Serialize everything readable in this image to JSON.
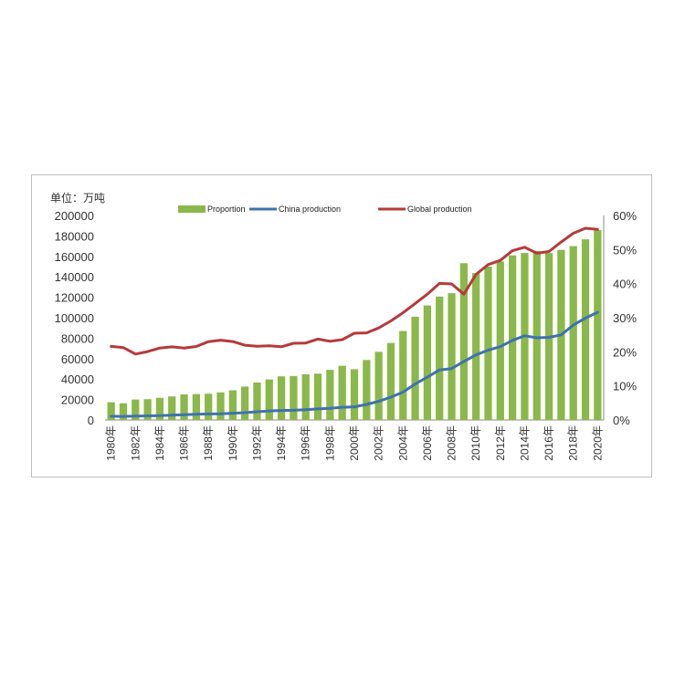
{
  "chart_data": {
    "type": "bar+line",
    "unit_label": "单位：万吨",
    "legend": [
      {
        "name": "Proportion",
        "color": "#8bb84a",
        "kind": "bar"
      },
      {
        "name": "China production",
        "color": "#3f72ad",
        "kind": "line"
      },
      {
        "name": "Global production",
        "color": "#b63a3a",
        "kind": "line"
      }
    ],
    "x": [
      "1980年",
      "1981年",
      "1982年",
      "1983年",
      "1984年",
      "1985年",
      "1986年",
      "1987年",
      "1988年",
      "1989年",
      "1990年",
      "1991年",
      "1992年",
      "1993年",
      "1994年",
      "1995年",
      "1996年",
      "1997年",
      "1998年",
      "1999年",
      "2000年",
      "2001年",
      "2002年",
      "2003年",
      "2004年",
      "2005年",
      "2006年",
      "2007年",
      "2008年",
      "2009年",
      "2010年",
      "2011年",
      "2012年",
      "2013年",
      "2014年",
      "2015年",
      "2016年",
      "2017年",
      "2018年",
      "2019年",
      "2020年"
    ],
    "x_tick_labels": [
      "1980年",
      "1982年",
      "1984年",
      "1986年",
      "1988年",
      "1990年",
      "1992年",
      "1994年",
      "1996年",
      "1998年",
      "2000年",
      "2002年",
      "2004年",
      "2006年",
      "2008年",
      "2010年",
      "2012年",
      "2014年",
      "2016年",
      "2018年",
      "2020年"
    ],
    "left_axis": {
      "ylim": [
        0,
        200000
      ],
      "ticks": [
        "200000",
        "180000",
        "160000",
        "140000",
        "120000",
        "100000",
        "80000",
        "60000",
        "40000",
        "20000",
        "0"
      ]
    },
    "right_axis": {
      "ylim": [
        0,
        60
      ],
      "ticks": [
        "60%",
        "50%",
        "40%",
        "30%",
        "20%",
        "10%",
        "0%"
      ]
    },
    "series": [
      {
        "name": "Proportion",
        "axis": "right",
        "unit": "%",
        "values": [
          5.2,
          4.9,
          6.0,
          6.1,
          6.5,
          6.9,
          7.5,
          7.6,
          7.7,
          8.1,
          8.7,
          9.8,
          11.0,
          11.9,
          12.8,
          12.9,
          13.4,
          13.6,
          14.7,
          15.9,
          14.9,
          17.6,
          20.0,
          22.6,
          26.1,
          30.3,
          33.6,
          36.2,
          37.2,
          46.0,
          43.1,
          45.0,
          46.5,
          48.3,
          49.0,
          49.6,
          49.0,
          49.9,
          51.0,
          53.0,
          55.7
        ]
      },
      {
        "name": "China production",
        "axis": "left",
        "values": [
          3700,
          3500,
          3800,
          4000,
          4300,
          4700,
          5200,
          5600,
          5900,
          6100,
          6600,
          7100,
          8000,
          8800,
          9300,
          9500,
          10100,
          10800,
          11400,
          12400,
          12900,
          15200,
          18200,
          22300,
          27200,
          35300,
          41900,
          48900,
          50300,
          57200,
          63700,
          68300,
          71700,
          77900,
          82300,
          80400,
          80800,
          83200,
          92800,
          99600,
          105300
        ]
      },
      {
        "name": "Global production",
        "axis": "left",
        "values": [
          72000,
          70800,
          64500,
          66900,
          70400,
          71500,
          70400,
          71900,
          76600,
          78000,
          76700,
          73100,
          72100,
          72600,
          71600,
          75000,
          75300,
          79100,
          77000,
          78600,
          84800,
          85200,
          90000,
          96900,
          104900,
          113900,
          123000,
          133600,
          133000,
          123000,
          142400,
          152000,
          156100,
          165500,
          168900,
          163000,
          164700,
          174000,
          182600,
          187500,
          186400
        ]
      }
    ]
  }
}
